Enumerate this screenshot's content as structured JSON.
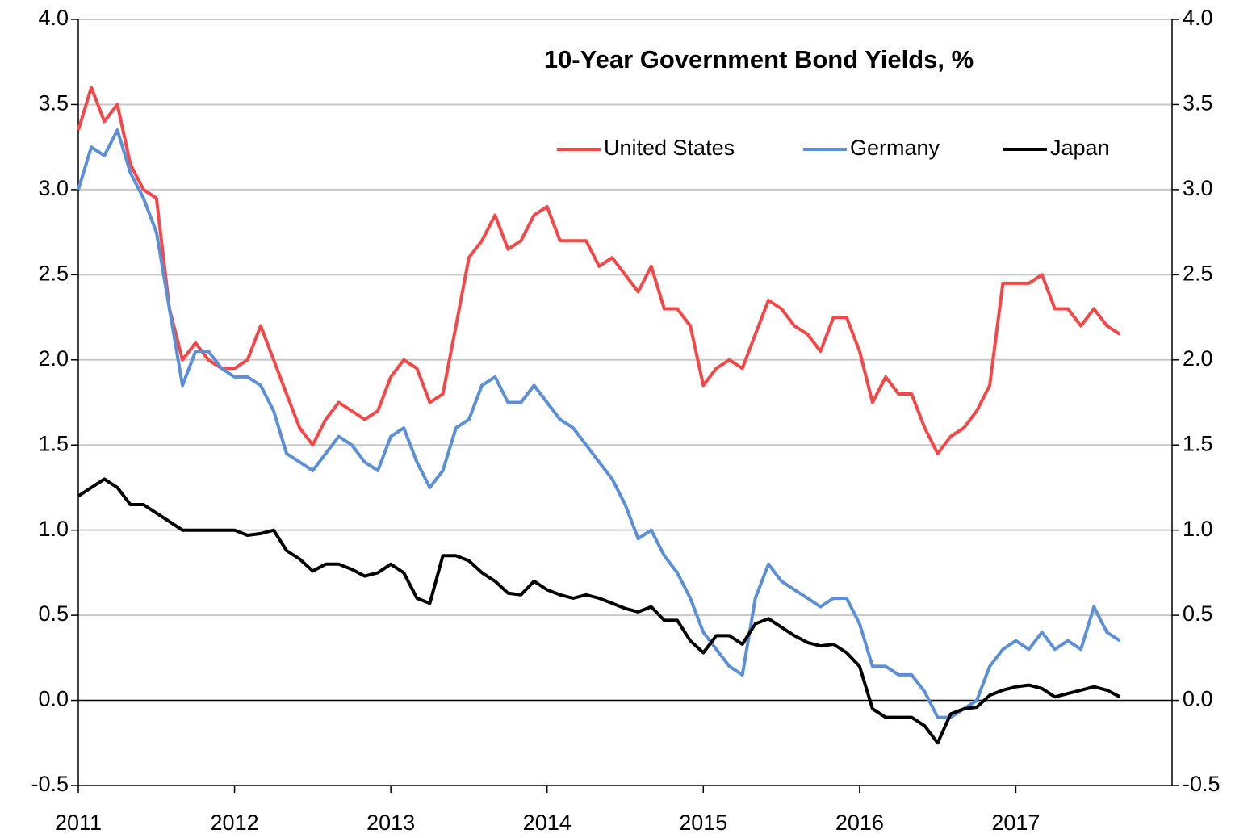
{
  "chart_data": {
    "type": "line",
    "title": "10-Year Government Bond Yields, %",
    "x": [
      2011,
      2011.083,
      2011.167,
      2011.25,
      2011.333,
      2011.417,
      2011.5,
      2011.583,
      2011.667,
      2011.75,
      2011.833,
      2011.917,
      2012,
      2012.083,
      2012.167,
      2012.25,
      2012.333,
      2012.417,
      2012.5,
      2012.583,
      2012.667,
      2012.75,
      2012.833,
      2012.917,
      2013,
      2013.083,
      2013.167,
      2013.25,
      2013.333,
      2013.417,
      2013.5,
      2013.583,
      2013.667,
      2013.75,
      2013.833,
      2013.917,
      2014,
      2014.083,
      2014.167,
      2014.25,
      2014.333,
      2014.417,
      2014.5,
      2014.583,
      2014.667,
      2014.75,
      2014.833,
      2014.917,
      2015,
      2015.083,
      2015.167,
      2015.25,
      2015.333,
      2015.417,
      2015.5,
      2015.583,
      2015.667,
      2015.75,
      2015.833,
      2015.917,
      2016,
      2016.083,
      2016.167,
      2016.25,
      2016.333,
      2016.417,
      2016.5,
      2016.583,
      2016.667,
      2016.75,
      2016.833,
      2016.917,
      2017,
      2017.083,
      2017.167,
      2017.25,
      2017.333,
      2017.417,
      2017.5,
      2017.583,
      2017.667
    ],
    "series": [
      {
        "name": "United States",
        "color": "#f44848",
        "values": [
          3.35,
          3.6,
          3.4,
          3.5,
          3.15,
          3.0,
          2.95,
          2.3,
          2.0,
          2.1,
          2.0,
          1.95,
          1.95,
          2.0,
          2.2,
          2.0,
          1.8,
          1.6,
          1.5,
          1.65,
          1.75,
          1.7,
          1.65,
          1.7,
          1.9,
          2.0,
          1.95,
          1.75,
          1.8,
          2.2,
          2.6,
          2.7,
          2.85,
          2.65,
          2.7,
          2.85,
          2.9,
          2.7,
          2.7,
          2.7,
          2.55,
          2.6,
          2.5,
          2.4,
          2.55,
          2.3,
          2.3,
          2.2,
          1.85,
          1.95,
          2.0,
          1.95,
          2.15,
          2.35,
          2.3,
          2.2,
          2.15,
          2.05,
          2.25,
          2.25,
          2.05,
          1.75,
          1.9,
          1.8,
          1.8,
          1.6,
          1.45,
          1.55,
          1.6,
          1.7,
          1.85,
          2.45,
          2.45,
          2.45,
          2.5,
          2.3,
          2.3,
          2.2,
          2.3,
          2.2,
          2.15
        ]
      },
      {
        "name": "Germany",
        "color": "#5b8fd6",
        "values": [
          3.0,
          3.25,
          3.2,
          3.35,
          3.1,
          2.95,
          2.75,
          2.3,
          1.85,
          2.05,
          2.05,
          1.95,
          1.9,
          1.9,
          1.85,
          1.7,
          1.45,
          1.4,
          1.35,
          1.45,
          1.55,
          1.5,
          1.4,
          1.35,
          1.55,
          1.6,
          1.4,
          1.25,
          1.35,
          1.6,
          1.65,
          1.85,
          1.9,
          1.75,
          1.75,
          1.85,
          1.75,
          1.65,
          1.6,
          1.5,
          1.4,
          1.3,
          1.15,
          0.95,
          1.0,
          0.85,
          0.75,
          0.6,
          0.4,
          0.3,
          0.2,
          0.15,
          0.6,
          0.8,
          0.7,
          0.65,
          0.6,
          0.55,
          0.6,
          0.6,
          0.45,
          0.2,
          0.2,
          0.15,
          0.15,
          0.05,
          -0.1,
          -0.1,
          -0.05,
          0.0,
          0.2,
          0.3,
          0.35,
          0.3,
          0.4,
          0.3,
          0.35,
          0.3,
          0.55,
          0.4,
          0.35
        ]
      },
      {
        "name": "Japan",
        "color": "#000000",
        "values": [
          1.2,
          1.25,
          1.3,
          1.25,
          1.15,
          1.15,
          1.1,
          1.05,
          1.0,
          1.0,
          1.0,
          1.0,
          1.0,
          0.97,
          0.98,
          1.0,
          0.88,
          0.83,
          0.76,
          0.8,
          0.8,
          0.77,
          0.73,
          0.75,
          0.8,
          0.75,
          0.6,
          0.57,
          0.85,
          0.85,
          0.82,
          0.75,
          0.7,
          0.63,
          0.62,
          0.7,
          0.65,
          0.62,
          0.6,
          0.62,
          0.6,
          0.57,
          0.54,
          0.52,
          0.55,
          0.47,
          0.47,
          0.35,
          0.28,
          0.38,
          0.38,
          0.33,
          0.45,
          0.48,
          0.43,
          0.38,
          0.34,
          0.32,
          0.33,
          0.28,
          0.2,
          -0.05,
          -0.1,
          -0.1,
          -0.1,
          -0.15,
          -0.25,
          -0.08,
          -0.05,
          -0.04,
          0.03,
          0.06,
          0.08,
          0.09,
          0.07,
          0.02,
          0.04,
          0.06,
          0.08,
          0.06,
          0.02
        ]
      }
    ],
    "xlim": [
      2011,
      2018
    ],
    "xticks": [
      2011,
      2012,
      2013,
      2014,
      2015,
      2016,
      2017
    ],
    "ylim": [
      -0.5,
      4.0
    ],
    "yticks": [
      {
        "value": -0.5,
        "label": "-0.5"
      },
      {
        "value": 0,
        "label": "0.0"
      },
      {
        "value": 0.5,
        "label": "0.5"
      },
      {
        "value": 1,
        "label": "1.0"
      },
      {
        "value": 1.5,
        "label": "1.5"
      },
      {
        "value": 2,
        "label": "2.0"
      },
      {
        "value": 2.5,
        "label": "2.5"
      },
      {
        "value": 3,
        "label": "3.0"
      },
      {
        "value": 3.5,
        "label": "3.5"
      },
      {
        "value": 4,
        "label": "4.0"
      }
    ],
    "y2lim": [
      -0.5,
      4.0
    ],
    "y2ticks": [
      {
        "value": -0.5,
        "label": "-0.5"
      },
      {
        "value": 0,
        "label": "0.0"
      },
      {
        "value": 0.5,
        "label": "0.5"
      },
      {
        "value": 1,
        "label": "1.0"
      },
      {
        "value": 1.5,
        "label": "1.5"
      },
      {
        "value": 2,
        "label": "2.0"
      },
      {
        "value": 2.5,
        "label": "2.5"
      },
      {
        "value": 3,
        "label": "3.0"
      },
      {
        "value": 3.5,
        "label": "3.5"
      },
      {
        "value": 4,
        "label": "4.0"
      }
    ],
    "grid": true,
    "legend": "top"
  }
}
